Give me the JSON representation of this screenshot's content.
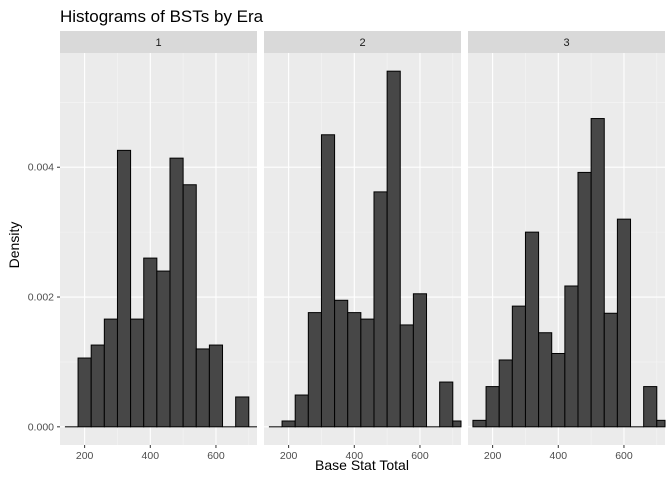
{
  "chart_data": {
    "type": "bar",
    "title": "Histograms of BSTs by Era",
    "xlabel": "Base Stat Total",
    "ylabel": "Density",
    "xlim": [
      125,
      725
    ],
    "ylim": [
      -0.00028,
      0.00576
    ],
    "x_ticks": [
      200,
      400,
      600
    ],
    "x_tick_labels": [
      "200",
      "400",
      "600"
    ],
    "y_ticks": [
      0,
      0.002,
      0.004
    ],
    "y_tick_labels": [
      "0.000",
      "0.002",
      "0.004"
    ],
    "grid": true,
    "bin_edges": [
      140,
      180,
      220,
      260,
      300,
      340,
      380,
      420,
      460,
      500,
      540,
      580,
      620,
      660,
      700,
      740
    ],
    "panels": [
      {
        "label": "1",
        "values": [
          0,
          0.00106,
          0.00126,
          0.00166,
          0.00426,
          0.00166,
          0.0026,
          0.0024,
          0.00414,
          0.00373,
          0.0012,
          0.00126,
          0,
          0.00046,
          0
        ]
      },
      {
        "label": "2",
        "values": [
          0,
          9e-05,
          0.00049,
          0.00176,
          0.0045,
          0.00195,
          0.00176,
          0.00166,
          0.00362,
          0.00548,
          0.00157,
          0.00205,
          0,
          0.00069,
          9e-05
        ]
      },
      {
        "label": "3",
        "values": [
          0.0001,
          0.00062,
          0.00103,
          0.00186,
          0.003,
          0.00145,
          0.00113,
          0.00217,
          0.00392,
          0.00475,
          0.00175,
          0.0032,
          0,
          0.00062,
          0.0001
        ]
      }
    ]
  }
}
